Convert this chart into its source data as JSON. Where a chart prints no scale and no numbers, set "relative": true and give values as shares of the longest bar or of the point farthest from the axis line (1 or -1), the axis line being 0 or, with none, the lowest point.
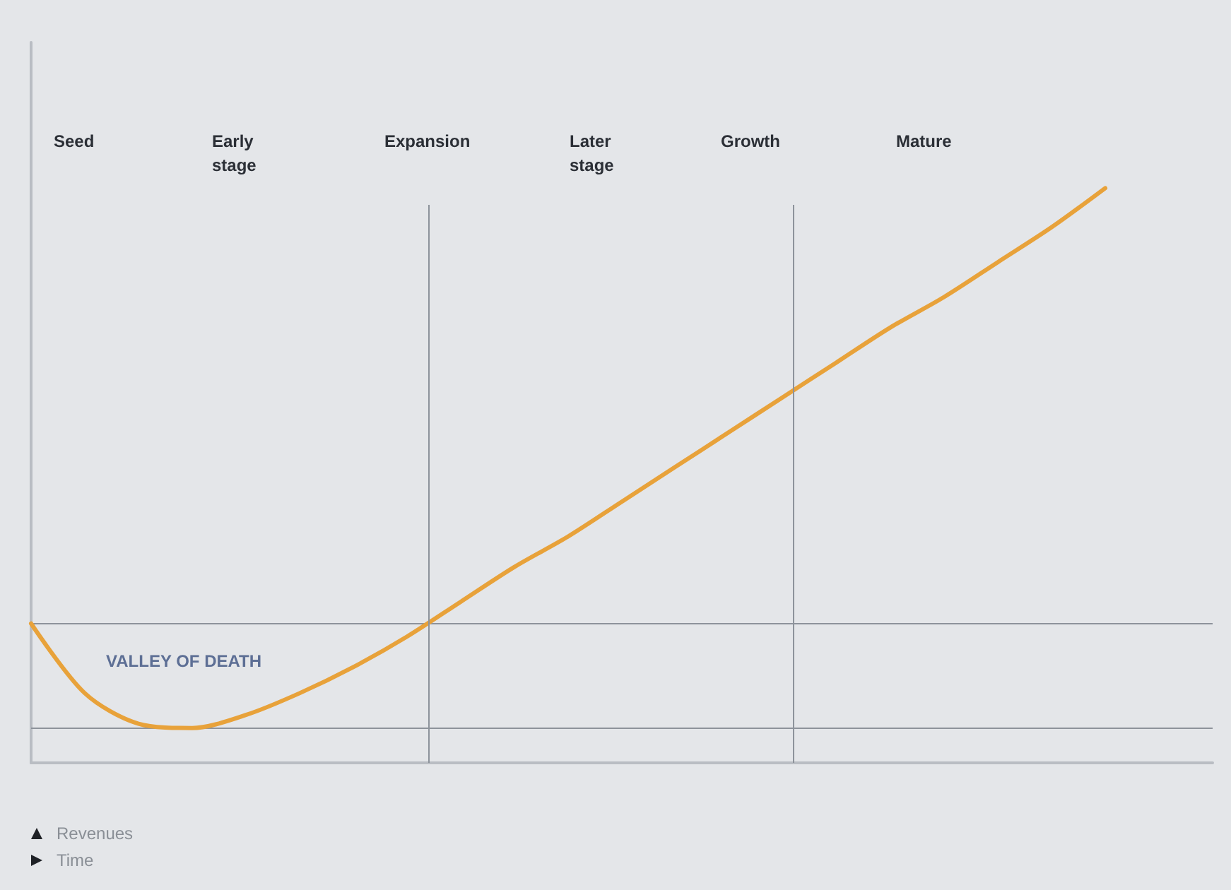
{
  "chart_data": {
    "type": "line",
    "relative": true,
    "annotations": [
      "Seed",
      "Early\nstage",
      "Expansion",
      "Later\nstage",
      "Growth",
      "Mature",
      "VALLEY OF DEATH",
      "Revenues",
      "Time"
    ],
    "categories": [
      null,
      null,
      null,
      null,
      null,
      null,
      null,
      null,
      null,
      null,
      null,
      null,
      null,
      null,
      null,
      null,
      null,
      null,
      null,
      null,
      null,
      null,
      null
    ],
    "series": [
      {
        "color": "#e8a23a",
        "values": [
          0,
          -0.16,
          -0.23,
          -0.24,
          -0.21,
          -0.16,
          -0.1,
          -0.03,
          0.05,
          0.13,
          0.2,
          0.28,
          0.36,
          0.44,
          0.52,
          0.6,
          0.68,
          0.75,
          0.83,
          0.91,
          1,
          null,
          null
        ]
      }
    ],
    "ref_lines": [
      {
        "axis": "y",
        "value": 0,
        "color": "#8d939b"
      },
      {
        "axis": "y",
        "value": -0.24,
        "color": "#8d939b"
      }
    ],
    "grid": false,
    "marker": "none",
    "line_style": "solid"
  }
}
